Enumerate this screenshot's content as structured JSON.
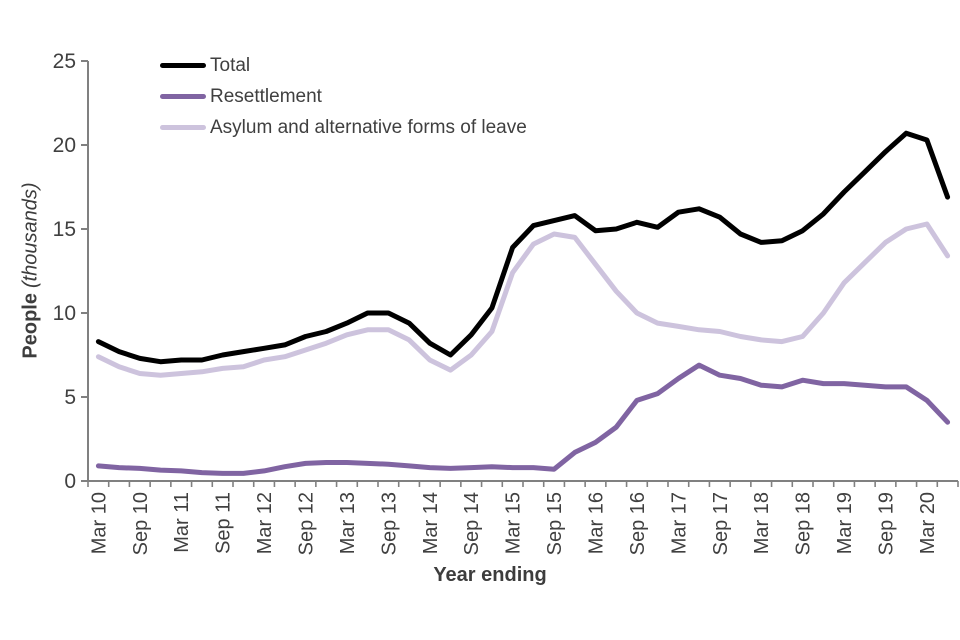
{
  "chart_data": {
    "type": "line",
    "xlabel": "Year ending",
    "ylabel_bold": "People",
    "ylabel_italic": "(thousands)",
    "ylim": [
      0,
      25
    ],
    "ytick_step": 5,
    "ytick_labels": [
      "0",
      "5",
      "10",
      "15",
      "20",
      "25"
    ],
    "x_tick_labels": [
      "Mar 10",
      "Sep 10",
      "Mar 11",
      "Sep 11",
      "Mar 12",
      "Sep 12",
      "Mar 13",
      "Sep 13",
      "Mar 14",
      "Sep 14",
      "Mar 15",
      "Sep 15",
      "Mar 16",
      "Sep 16",
      "Mar 17",
      "Sep 17",
      "Mar 18",
      "Sep 18",
      "Mar 19",
      "Sep 19",
      "Mar 20"
    ],
    "points_per_label_interval": 2,
    "n_points": 42,
    "grid": false,
    "legend_position": "inside-top-left",
    "axis_color": "#808080",
    "text_color": "#404040",
    "series": [
      {
        "name": "Total",
        "color": "#000000",
        "values": [
          8.3,
          7.7,
          7.3,
          7.1,
          7.2,
          7.2,
          7.5,
          7.7,
          7.9,
          8.1,
          8.6,
          8.9,
          9.4,
          10.0,
          10.0,
          9.4,
          8.2,
          7.5,
          8.7,
          10.3,
          13.9,
          15.2,
          15.5,
          15.8,
          14.9,
          15.0,
          15.4,
          15.1,
          16.0,
          16.2,
          15.7,
          14.7,
          14.2,
          14.3,
          14.9,
          15.9,
          17.2,
          18.4,
          19.6,
          20.7,
          20.3,
          16.9
        ]
      },
      {
        "name": "Resettlement",
        "color": "#8064a2",
        "values": [
          0.9,
          0.8,
          0.75,
          0.65,
          0.6,
          0.5,
          0.45,
          0.45,
          0.6,
          0.85,
          1.05,
          1.1,
          1.1,
          1.05,
          1.0,
          0.9,
          0.8,
          0.75,
          0.8,
          0.85,
          0.8,
          0.8,
          0.7,
          1.7,
          2.3,
          3.2,
          4.8,
          5.2,
          6.1,
          6.9,
          6.3,
          6.1,
          5.7,
          5.6,
          6.0,
          5.8,
          5.8,
          5.7,
          5.6,
          5.6,
          4.8,
          3.5
        ]
      },
      {
        "name": "Asylum and alternative forms of leave",
        "color": "#cdc3dd",
        "values": [
          7.4,
          6.8,
          6.4,
          6.3,
          6.4,
          6.5,
          6.7,
          6.8,
          7.2,
          7.4,
          7.8,
          8.2,
          8.7,
          9.0,
          9.0,
          8.4,
          7.2,
          6.6,
          7.5,
          8.9,
          12.4,
          14.1,
          14.7,
          14.5,
          12.9,
          11.3,
          10.0,
          9.4,
          9.2,
          9.0,
          8.9,
          8.6,
          8.4,
          8.3,
          8.6,
          10.0,
          11.8,
          13.0,
          14.2,
          15.0,
          15.3,
          13.4
        ]
      }
    ]
  }
}
